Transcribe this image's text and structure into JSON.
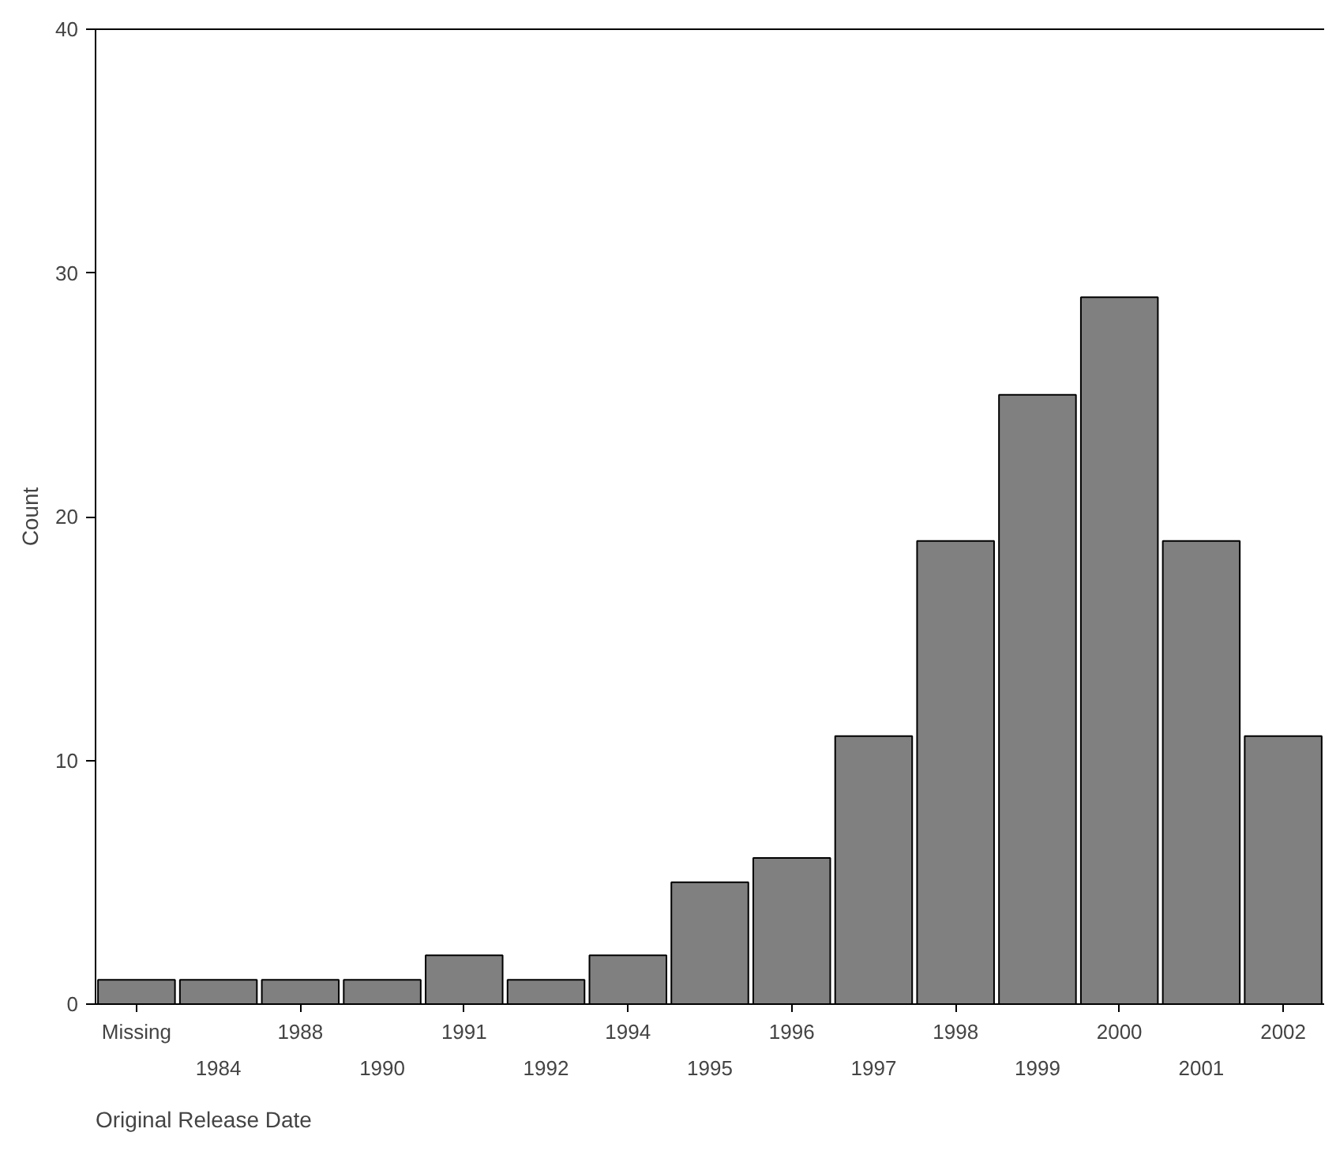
{
  "chart_data": {
    "type": "bar",
    "xlabel": "Original Release Date",
    "ylabel": "Count",
    "categories": [
      "Missing",
      "1984",
      "1988",
      "1990",
      "1991",
      "1992",
      "1994",
      "1995",
      "1996",
      "1997",
      "1998",
      "1999",
      "2000",
      "2001",
      "2002"
    ],
    "values": [
      1,
      1,
      1,
      1,
      2,
      1,
      2,
      5,
      6,
      11,
      19,
      25,
      29,
      19,
      11
    ],
    "color": "#808080",
    "ylim": [
      0,
      40
    ],
    "yticks": [
      0,
      10,
      20,
      30,
      40
    ],
    "grid": false
  }
}
